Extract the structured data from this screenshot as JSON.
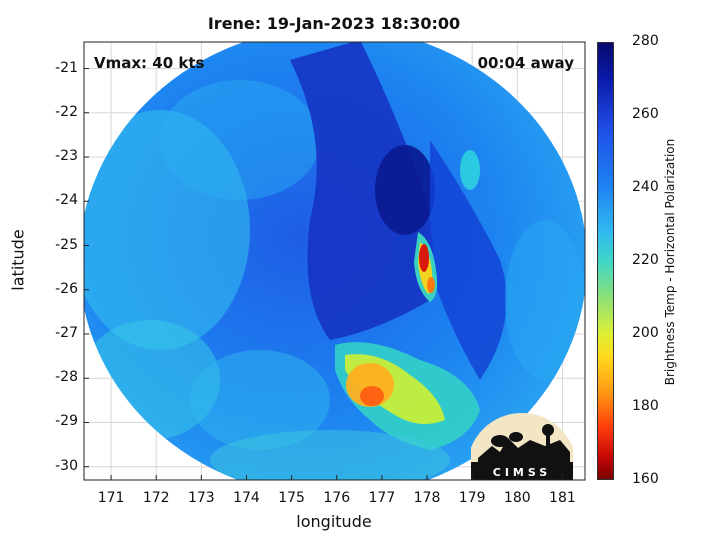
{
  "title": "Irene: 19-Jan-2023 18:30:00",
  "annotations": {
    "vmax": "Vmax: 40 kts",
    "time_away": "00:04 away"
  },
  "axes": {
    "xlabel": "longitude",
    "ylabel": "latitude",
    "x_ticks": [
      "171",
      "172",
      "173",
      "174",
      "175",
      "176",
      "177",
      "178",
      "179",
      "180",
      "181"
    ],
    "y_ticks": [
      "-21",
      "-22",
      "-23",
      "-24",
      "-25",
      "-26",
      "-27",
      "-28",
      "-29",
      "-30"
    ],
    "xlim": [
      170.4,
      181.5
    ],
    "ylim": [
      -30.3,
      -20.4
    ],
    "grid": true
  },
  "colorbar": {
    "label": "Brightness Temp - Horizontal Polarization",
    "ticks": [
      "280",
      "260",
      "240",
      "220",
      "200",
      "180",
      "160"
    ],
    "range": [
      160,
      280
    ]
  },
  "map": {
    "features": [
      {
        "name": "warm-core",
        "lon": 178.0,
        "lat": -25.4,
        "brightness_temp": 170
      },
      {
        "name": "warm-band",
        "lon": 176.9,
        "lat": -28.2,
        "brightness_temp": 195
      }
    ]
  },
  "logo": {
    "text": "CIMSS"
  }
}
